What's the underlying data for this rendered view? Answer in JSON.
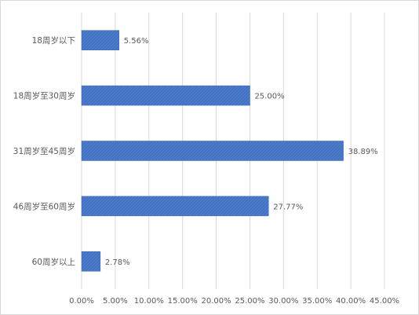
{
  "chart_data": {
    "type": "bar",
    "orientation": "horizontal",
    "categories": [
      "18周岁以下",
      "18周岁至30周岁",
      "31周岁至45周岁",
      "46周岁至60周岁",
      "60周岁以上"
    ],
    "values": [
      5.56,
      25.0,
      38.89,
      27.77,
      2.78
    ],
    "data_labels": [
      "5.56%",
      "25.00%",
      "38.89%",
      "27.77%",
      "2.78%"
    ],
    "xlim": [
      0,
      45
    ],
    "x_ticks": [
      0,
      5,
      10,
      15,
      20,
      25,
      30,
      35,
      40,
      45
    ],
    "x_tick_labels": [
      "0.00%",
      "5.00%",
      "10.00%",
      "15.00%",
      "20.00%",
      "25.00%",
      "30.00%",
      "35.00%",
      "40.00%",
      "45.00%"
    ],
    "title": "",
    "xlabel": "",
    "ylabel": "",
    "grid": true,
    "legend": "none",
    "colors": {
      "bar": "#4472c4",
      "grid": "#d9d9d9",
      "text": "#595959"
    }
  }
}
